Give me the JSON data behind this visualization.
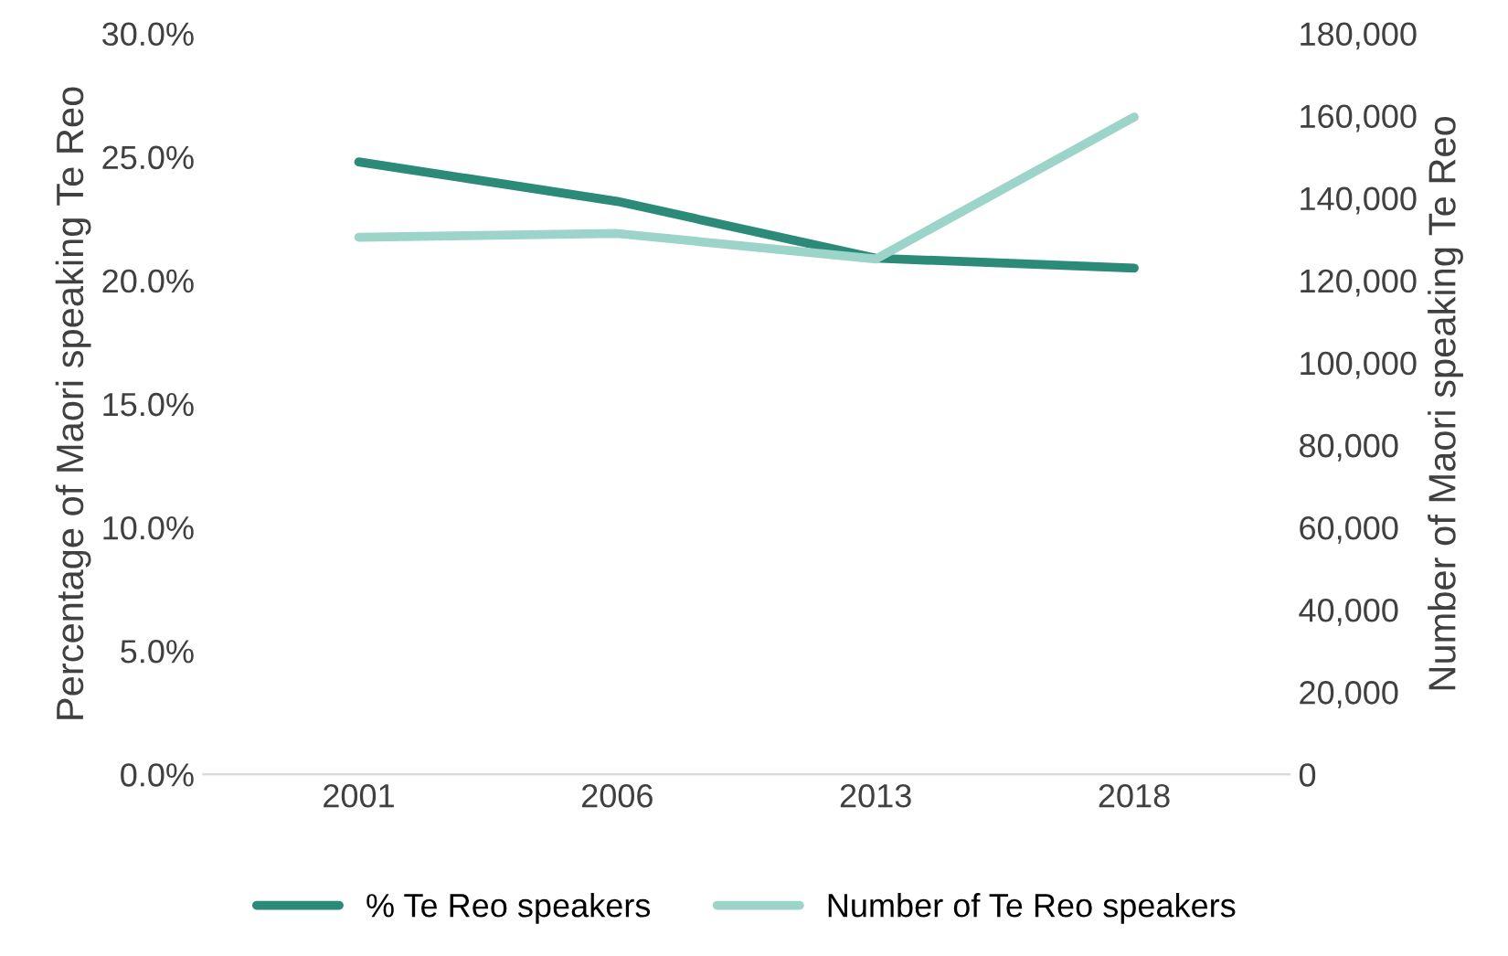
{
  "chart_data": {
    "type": "line",
    "categories": [
      "2001",
      "2006",
      "2013",
      "2018"
    ],
    "ylabel": "Percentage of Maori speaking Te Reo",
    "y2label": "Number of Maori speaking Te Reo",
    "ylim": [
      0,
      30
    ],
    "yticks": [
      {
        "value": 0,
        "label": "0.0%"
      },
      {
        "value": 5,
        "label": "5.0%"
      },
      {
        "value": 10,
        "label": "10.0%"
      },
      {
        "value": 15,
        "label": "15.0%"
      },
      {
        "value": 20,
        "label": "20.0%"
      },
      {
        "value": 25,
        "label": "25.0%"
      },
      {
        "value": 30,
        "label": "30.0%"
      }
    ],
    "y2lim": [
      0,
      180000
    ],
    "y2ticks": [
      {
        "value": 0,
        "label": "0"
      },
      {
        "value": 20000,
        "label": "20,000"
      },
      {
        "value": 40000,
        "label": "40,000"
      },
      {
        "value": 60000,
        "label": "60,000"
      },
      {
        "value": 80000,
        "label": "80,000"
      },
      {
        "value": 100000,
        "label": "100,000"
      },
      {
        "value": 120000,
        "label": "120,000"
      },
      {
        "value": 140000,
        "label": "140,000"
      },
      {
        "value": 160000,
        "label": "160,000"
      },
      {
        "value": 180000,
        "label": "180,000"
      }
    ],
    "series": [
      {
        "name": "% Te Reo speakers",
        "color": "#2b8a78",
        "values": [
          24.8,
          23.2,
          20.9,
          20.5
        ]
      },
      {
        "name": "Number of Te Reo speakers",
        "color": "#9dd4c9",
        "axis": "y2",
        "values": [
          130500,
          131400,
          125200,
          159700
        ]
      }
    ],
    "grid": false,
    "legend": "bottom",
    "marker": "none",
    "line_style": "solid"
  }
}
